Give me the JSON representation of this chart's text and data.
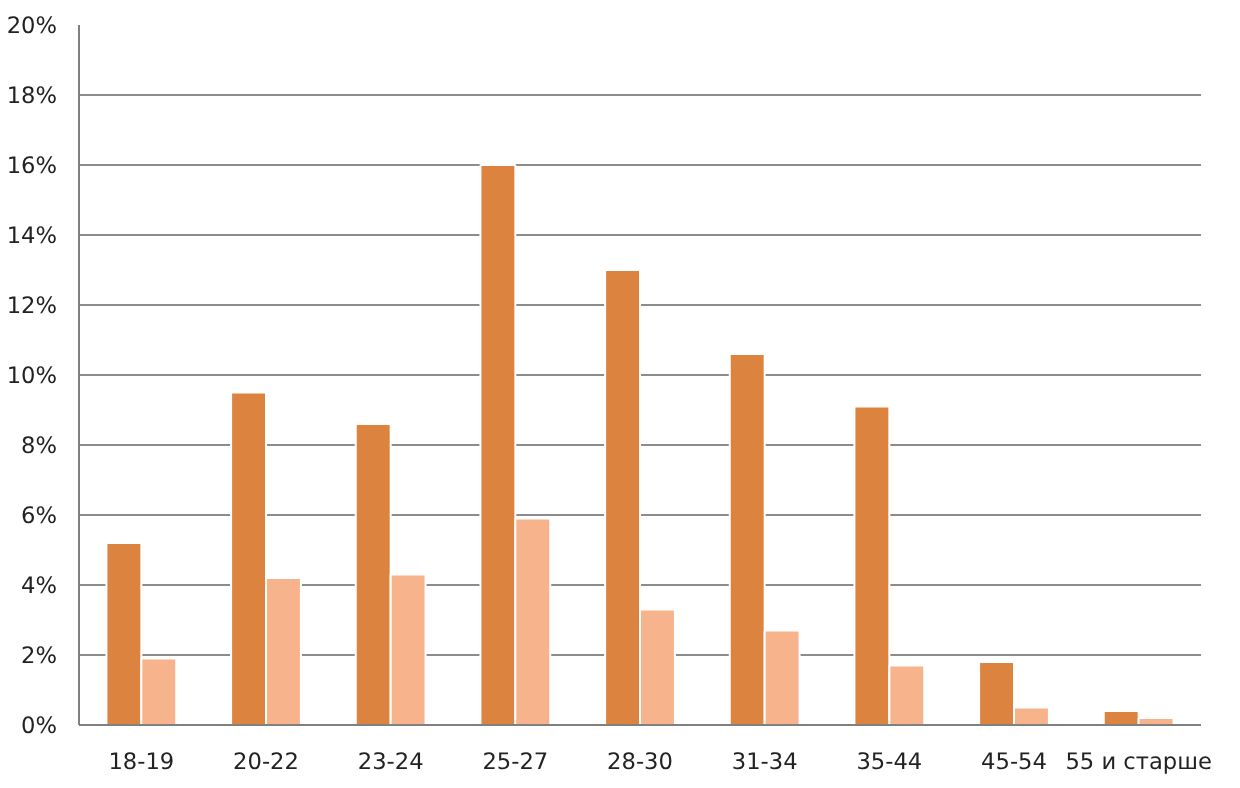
{
  "chart_data": {
    "type": "bar",
    "categories": [
      "18-19",
      "20-22",
      "23-24",
      "25-27",
      "28-30",
      "31-34",
      "35-44",
      "45-54",
      "55 и старше"
    ],
    "series": [
      {
        "color": "#dc843f",
        "values": [
          5.2,
          9.5,
          8.6,
          16.0,
          13.0,
          10.6,
          9.1,
          1.8,
          0.4
        ]
      },
      {
        "color": "#f7b38b",
        "values": [
          1.9,
          4.2,
          4.3,
          5.9,
          3.3,
          2.7,
          1.7,
          0.5,
          0.2
        ]
      }
    ],
    "ylim": [
      0,
      20
    ],
    "yticks": [
      {
        "value": 0,
        "label": "0%"
      },
      {
        "value": 2,
        "label": "2%"
      },
      {
        "value": 4,
        "label": "4%"
      },
      {
        "value": 6,
        "label": "6%"
      },
      {
        "value": 8,
        "label": "8%"
      },
      {
        "value": 10,
        "label": "10%"
      },
      {
        "value": 12,
        "label": "12%"
      },
      {
        "value": 14,
        "label": "14%"
      },
      {
        "value": 16,
        "label": "16%"
      },
      {
        "value": 18,
        "label": "18%"
      },
      {
        "value": 20,
        "label": "20%"
      }
    ],
    "grid": "y"
  }
}
